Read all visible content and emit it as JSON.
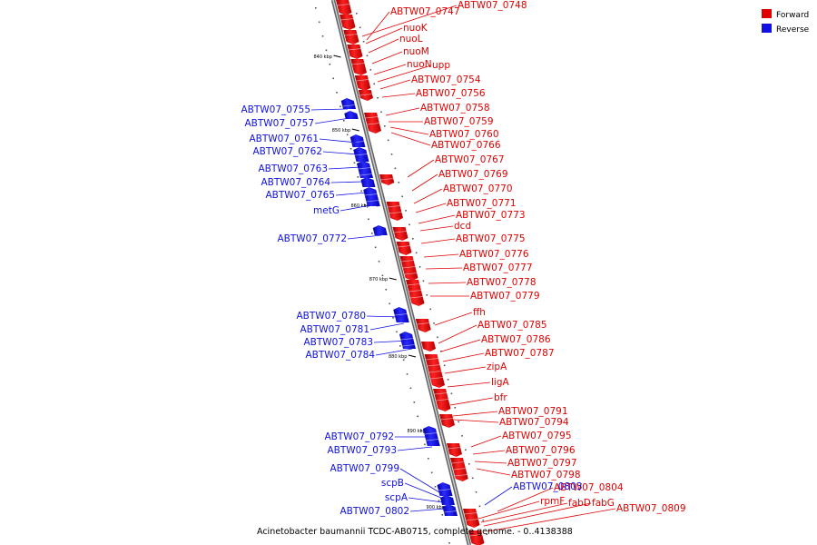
{
  "legend": {
    "forward": {
      "label": "Forward",
      "color": "#e00000"
    },
    "reverse": {
      "label": "Reverse",
      "color": "#1010e0"
    }
  },
  "caption": "Acinetobacter baumannii TCDC-AB0715, complete genome. - 0..4138388",
  "ticks": [
    "840 kbp",
    "850 kbp",
    "860 kbp",
    "870 kbp",
    "880 kbp",
    "890 kbp",
    "900 kbp"
  ],
  "forward_genes": [
    "ABTW07_0747",
    "ABTW07_0748",
    "nuoK",
    "nuoL",
    "nuoM",
    "nuoN",
    "upp",
    "ABTW07_0754",
    "ABTW07_0756",
    "ABTW07_0758",
    "ABTW07_0759",
    "ABTW07_0760",
    "ABTW07_0766",
    "ABTW07_0767",
    "ABTW07_0769",
    "ABTW07_0770",
    "ABTW07_0771",
    "ABTW07_0773",
    "dcd",
    "ABTW07_0775",
    "ABTW07_0776",
    "ABTW07_0777",
    "ABTW07_0778",
    "ABTW07_0779",
    "ffh",
    "ABTW07_0785",
    "ABTW07_0786",
    "ABTW07_0787",
    "zipA",
    "ligA",
    "bfr",
    "ABTW07_0791",
    "ABTW07_0794",
    "ABTW07_0795",
    "ABTW07_0796",
    "ABTW07_0797",
    "ABTW07_0798",
    "ABTW07_0804",
    "rpmF",
    "fabD",
    "fabG",
    "ABTW07_0809"
  ],
  "reverse_genes": [
    "ABTW07_0755",
    "ABTW07_0757",
    "ABTW07_0761",
    "ABTW07_0762",
    "ABTW07_0763",
    "ABTW07_0764",
    "ABTW07_0765",
    "metG",
    "ABTW07_0772",
    "ABTW07_0780",
    "ABTW07_0781",
    "ABTW07_0783",
    "ABTW07_0784",
    "ABTW07_0792",
    "ABTW07_0793",
    "ABTW07_0799",
    "scpB",
    "scpA",
    "ABTW07_0802",
    "ABTW07_0803"
  ]
}
